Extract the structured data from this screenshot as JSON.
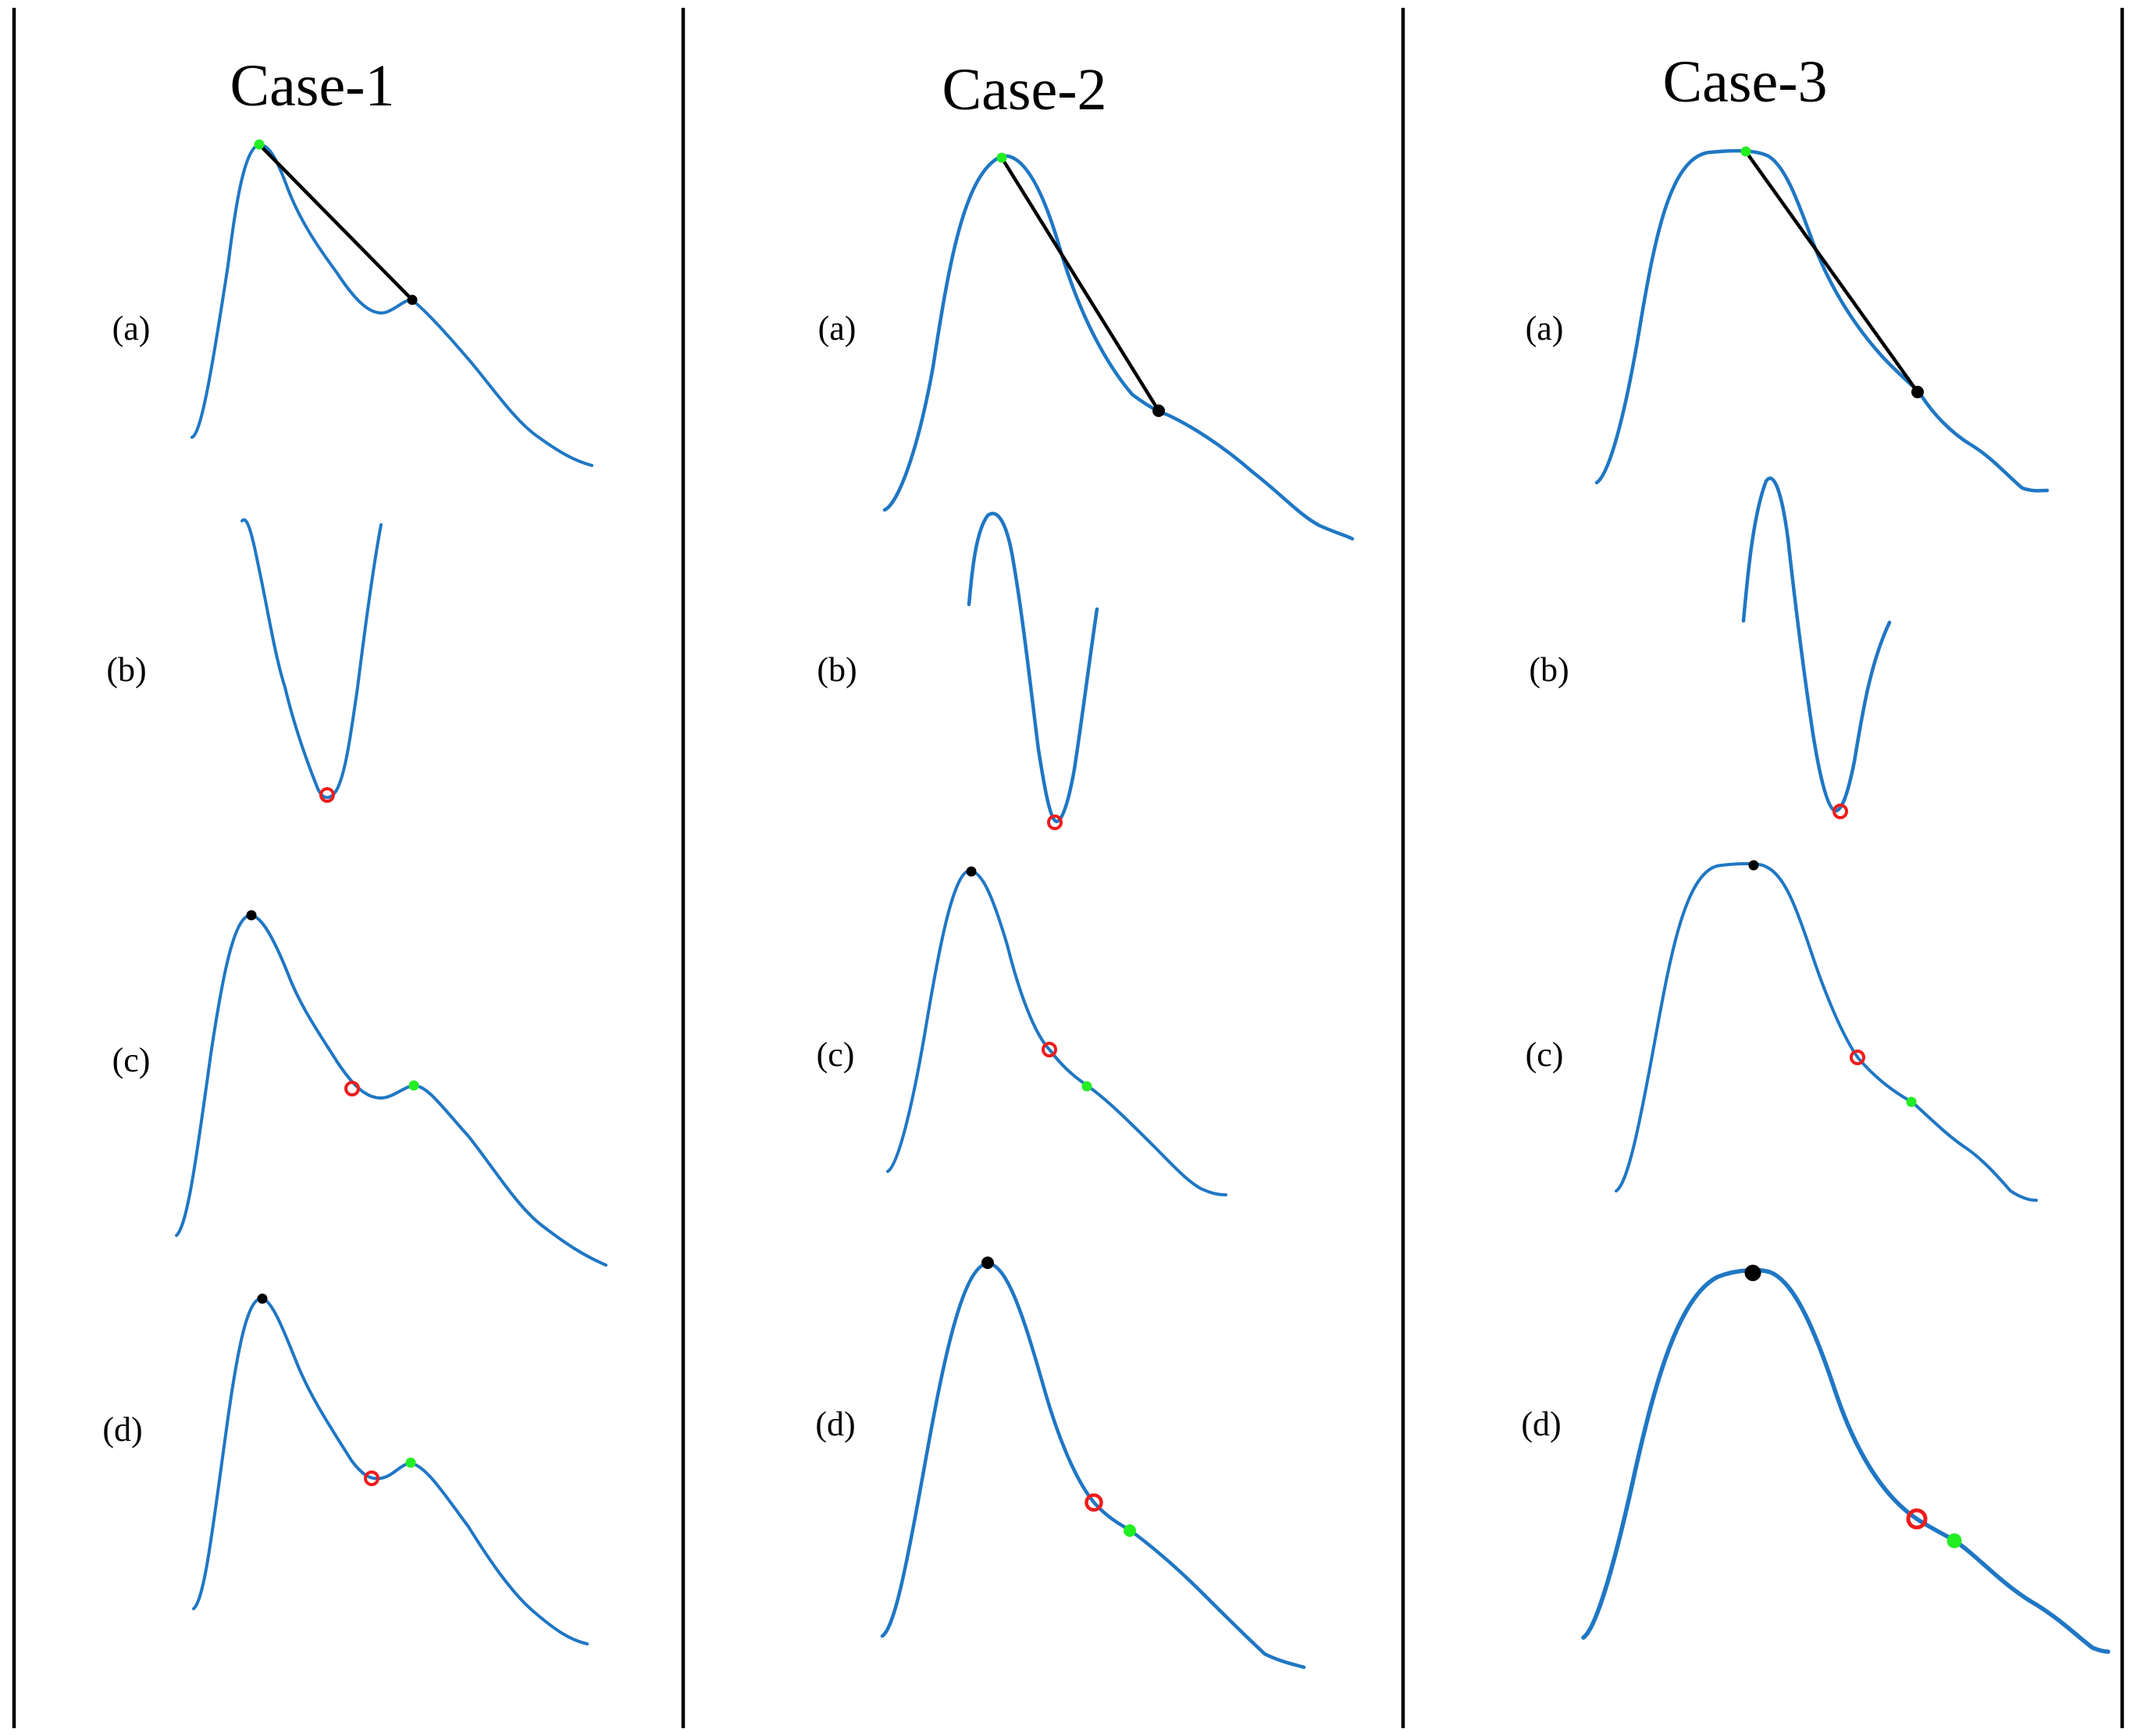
{
  "cases": [
    {
      "title": "Case-1",
      "panels": [
        {
          "label": "(a)",
          "markers": [
            "green-dot",
            "black-dot"
          ],
          "line": true
        },
        {
          "label": "(b)",
          "markers": [
            "red-circle"
          ]
        },
        {
          "label": "(c)",
          "markers": [
            "black-dot",
            "red-circle",
            "green-dot"
          ]
        },
        {
          "label": "(d)",
          "markers": [
            "black-dot",
            "red-circle",
            "green-dot"
          ]
        }
      ]
    },
    {
      "title": "Case-2",
      "panels": [
        {
          "label": "(a)",
          "markers": [
            "green-dot",
            "black-dot"
          ],
          "line": true
        },
        {
          "label": "(b)",
          "markers": [
            "red-circle"
          ]
        },
        {
          "label": "(c)",
          "markers": [
            "black-dot",
            "red-circle",
            "green-dot"
          ]
        },
        {
          "label": "(d)",
          "markers": [
            "black-dot",
            "red-circle",
            "green-dot"
          ]
        }
      ]
    },
    {
      "title": "Case-3",
      "panels": [
        {
          "label": "(a)",
          "markers": [
            "green-dot",
            "black-dot"
          ],
          "line": true
        },
        {
          "label": "(b)",
          "markers": [
            "red-circle"
          ]
        },
        {
          "label": "(c)",
          "markers": [
            "black-dot",
            "red-circle",
            "green-dot"
          ]
        },
        {
          "label": "(d)",
          "markers": [
            "black-dot",
            "red-circle",
            "green-dot"
          ]
        }
      ]
    }
  ],
  "colors": {
    "curve": "#1f77c4",
    "green-dot": "#22ee22",
    "black-dot": "#000000",
    "red-circle": "#ee1c1c",
    "divider": "#000000"
  }
}
